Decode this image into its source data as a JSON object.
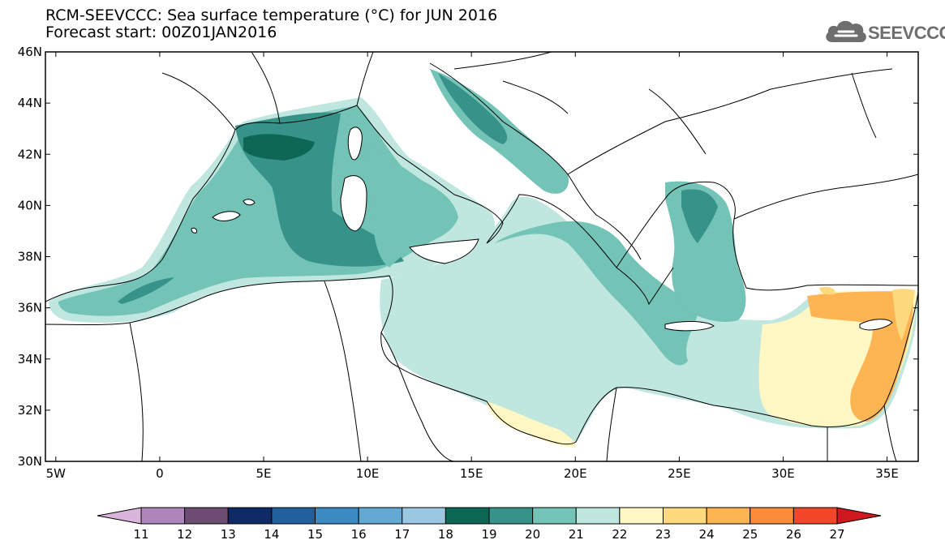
{
  "header": {
    "title": "RCM-SEEVCCC: Sea surface temperature (°C) for JUN 2016",
    "subtitle": "Forecast start: 00Z01JAN2016"
  },
  "logo": {
    "text": "SEEVCCC",
    "icon": "cloud-icon"
  },
  "map": {
    "variable": "Sea surface temperature",
    "units": "°C",
    "lon_range": [
      -5.5,
      36.5
    ],
    "lat_range": [
      30,
      46
    ],
    "lon_ticks": [
      {
        "value": -5,
        "label": "5W"
      },
      {
        "value": 0,
        "label": "0"
      },
      {
        "value": 5,
        "label": "5E"
      },
      {
        "value": 10,
        "label": "10E"
      },
      {
        "value": 15,
        "label": "15E"
      },
      {
        "value": 20,
        "label": "20E"
      },
      {
        "value": 25,
        "label": "25E"
      },
      {
        "value": 30,
        "label": "30E"
      },
      {
        "value": 35,
        "label": "35E"
      }
    ],
    "lat_ticks": [
      {
        "value": 46,
        "label": "46N"
      },
      {
        "value": 44,
        "label": "44N"
      },
      {
        "value": 42,
        "label": "42N"
      },
      {
        "value": 40,
        "label": "40N"
      },
      {
        "value": 38,
        "label": "38N"
      },
      {
        "value": 36,
        "label": "36N"
      },
      {
        "value": 34,
        "label": "34N"
      },
      {
        "value": 32,
        "label": "32N"
      },
      {
        "value": 30,
        "label": "30N"
      }
    ]
  },
  "colorbar": {
    "bins": [
      {
        "color": "#d9b5dc",
        "upper": 11
      },
      {
        "color": "#ae86bb",
        "upper": 12
      },
      {
        "color": "#6d4c74",
        "upper": 13
      },
      {
        "color": "#0f2b66",
        "upper": 14
      },
      {
        "color": "#20609c",
        "upper": 15
      },
      {
        "color": "#3c8ac2",
        "upper": 16
      },
      {
        "color": "#64a8d4",
        "upper": 17
      },
      {
        "color": "#9ac7e1",
        "upper": 18
      },
      {
        "color": "#0e6654",
        "upper": 19
      },
      {
        "color": "#37938a",
        "upper": 20
      },
      {
        "color": "#73c3b7",
        "upper": 21
      },
      {
        "color": "#bfe6df",
        "upper": 22
      },
      {
        "color": "#fff8c4",
        "upper": 23
      },
      {
        "color": "#fed97e",
        "upper": 24
      },
      {
        "color": "#fdb553",
        "upper": 25
      },
      {
        "color": "#fc8b3a",
        "upper": 26
      },
      {
        "color": "#f2472a",
        "upper": 27
      },
      {
        "color": "#d1181e",
        "upper": null
      }
    ],
    "labels": [
      "11",
      "12",
      "13",
      "14",
      "15",
      "16",
      "17",
      "18",
      "19",
      "20",
      "21",
      "22",
      "23",
      "24",
      "25",
      "26",
      "27"
    ]
  }
}
